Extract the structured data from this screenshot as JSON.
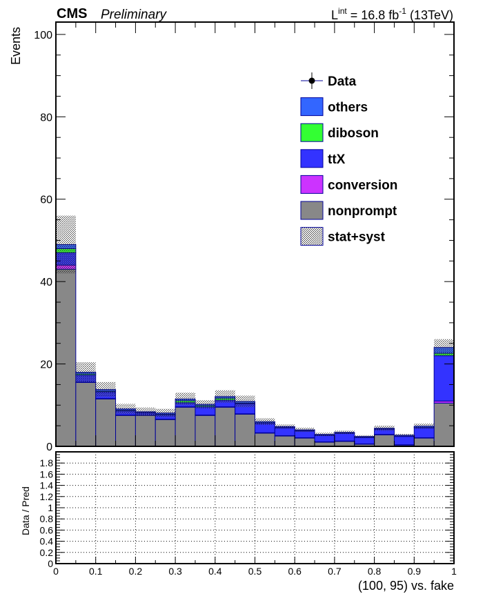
{
  "header": {
    "experiment": "CMS",
    "status": "Preliminary",
    "lumi_prefix": "L",
    "lumi_sup": "int",
    "lumi_value": " = 16.8 fb",
    "lumi_exp": "-1",
    "lumi_energy": " (13TeV)"
  },
  "colors": {
    "others": "#3366ff",
    "diboson": "#33ff33",
    "ttX": "#3333ff",
    "conversion": "#cc33ff",
    "nonprompt": "#888888",
    "outline": "#000099"
  },
  "chart_data": [
    {
      "type": "bar",
      "stacked": true,
      "title": "",
      "ylabel": "Events",
      "xlim": [
        0,
        1
      ],
      "ylim": [
        0,
        103
      ],
      "yticks": [
        0,
        20,
        40,
        60,
        80,
        100
      ],
      "legend_position": "top-right",
      "bin_edges": [
        0,
        0.05,
        0.1,
        0.15,
        0.2,
        0.25,
        0.3,
        0.35,
        0.4,
        0.45,
        0.5,
        0.55,
        0.6,
        0.65,
        0.7,
        0.75,
        0.8,
        0.85,
        0.9,
        0.95,
        1.0
      ],
      "legend": [
        {
          "label": "Data",
          "kind": "marker"
        },
        {
          "label": "others",
          "kind": "box",
          "color_key": "others"
        },
        {
          "label": "diboson",
          "kind": "box",
          "color_key": "diboson"
        },
        {
          "label": "ttX",
          "kind": "box",
          "color_key": "ttX"
        },
        {
          "label": "conversion",
          "kind": "box",
          "color_key": "conversion"
        },
        {
          "label": "nonprompt",
          "kind": "box",
          "color_key": "nonprompt"
        },
        {
          "label": "stat+syst",
          "kind": "hatch"
        }
      ],
      "series": [
        {
          "name": "nonprompt",
          "color_key": "nonprompt",
          "values": [
            43.0,
            15.5,
            11.5,
            7.5,
            7.5,
            6.5,
            9.5,
            7.5,
            9.5,
            7.8,
            3.2,
            2.5,
            2.0,
            1.0,
            1.2,
            0.5,
            2.8,
            0.3,
            2.0,
            10.5
          ]
        },
        {
          "name": "conversion",
          "color_key": "conversion",
          "values": [
            1.0,
            0.1,
            0.1,
            0.1,
            0.1,
            0.1,
            0.1,
            0.1,
            0.1,
            0.1,
            0.1,
            0.1,
            0.1,
            0.1,
            0.1,
            0.1,
            0.1,
            0.1,
            0.1,
            0.5
          ]
        },
        {
          "name": "ttX",
          "color_key": "ttX",
          "values": [
            3.0,
            1.7,
            1.6,
            1.0,
            0.5,
            1.0,
            1.0,
            2.0,
            1.6,
            2.4,
            2.3,
            1.9,
            1.6,
            1.5,
            1.8,
            1.5,
            1.2,
            2.0,
            2.4,
            11.0
          ]
        },
        {
          "name": "diboson",
          "color_key": "diboson",
          "values": [
            1.0,
            0.3,
            0.2,
            0.2,
            0.1,
            0.2,
            0.5,
            0.3,
            0.5,
            0.2,
            0.1,
            0.1,
            0.1,
            0.1,
            0.1,
            0.1,
            0.1,
            0.1,
            0.1,
            0.6
          ]
        },
        {
          "name": "others",
          "color_key": "others",
          "values": [
            1.0,
            0.4,
            0.4,
            0.3,
            0.2,
            0.3,
            0.4,
            0.3,
            0.4,
            0.4,
            0.3,
            0.2,
            0.2,
            0.2,
            0.2,
            0.2,
            0.2,
            0.2,
            0.3,
            1.4
          ]
        }
      ],
      "uncertainty": [
        7.0,
        2.4,
        1.8,
        1.2,
        1.0,
        1.0,
        1.5,
        1.0,
        1.5,
        1.4,
        0.8,
        0.5,
        0.5,
        0.4,
        0.4,
        0.3,
        0.6,
        0.3,
        0.6,
        2.0
      ]
    },
    {
      "type": "line",
      "title": "",
      "ylabel": "Data / Pred",
      "xlabel": "(100, 95) vs. fake",
      "xlim": [
        0,
        1
      ],
      "ylim": [
        0,
        2
      ],
      "yticks": [
        "0",
        "0.2",
        "0.4",
        "0.6",
        "0.8",
        "1",
        "1.2",
        "1.4",
        "1.6",
        "1.8"
      ],
      "xticks": [
        "0",
        "0.1",
        "0.2",
        "0.3",
        "0.4",
        "0.5",
        "0.6",
        "0.7",
        "0.8",
        "0.9",
        "1"
      ],
      "grid": true,
      "series": []
    }
  ]
}
